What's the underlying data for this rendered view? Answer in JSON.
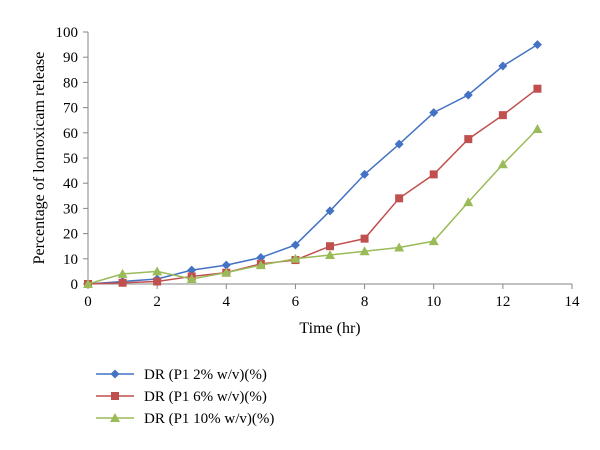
{
  "chart_data": {
    "type": "line",
    "xlabel": "Time (hr)",
    "ylabel": "Percentage of lornoxicam release",
    "xlim": [
      0,
      14
    ],
    "ylim": [
      0,
      100
    ],
    "x_ticks": [
      0,
      2,
      4,
      6,
      8,
      10,
      12,
      14
    ],
    "y_ticks": [
      0,
      10,
      20,
      30,
      40,
      50,
      60,
      70,
      80,
      90,
      100
    ],
    "grid": false,
    "legend_position": "bottom-left",
    "x": [
      0,
      1,
      2,
      3,
      4,
      5,
      6,
      7,
      8,
      9,
      10,
      11,
      12,
      13
    ],
    "series": [
      {
        "name": "DR (P1 2% w/v)(%)",
        "color": "#4472C4",
        "marker": "diamond",
        "values": [
          0,
          1,
          2,
          5.5,
          7.5,
          10.5,
          15.5,
          29,
          43.5,
          55.5,
          68,
          75,
          86.5,
          95
        ]
      },
      {
        "name": "DR (P1 6% w/v)(%)",
        "color": "#C0504D",
        "marker": "square",
        "values": [
          0,
          0.5,
          1,
          3,
          4.5,
          8,
          9.5,
          15,
          18,
          34,
          43.5,
          57.5,
          67,
          77.5
        ]
      },
      {
        "name": "DR (P1 10% w/v)(%)",
        "color": "#9BBB59",
        "marker": "triangle",
        "values": [
          0,
          4,
          5,
          2,
          4.5,
          7.5,
          10,
          11.5,
          13,
          14.5,
          17,
          32.5,
          47.5,
          61.5
        ]
      }
    ]
  }
}
